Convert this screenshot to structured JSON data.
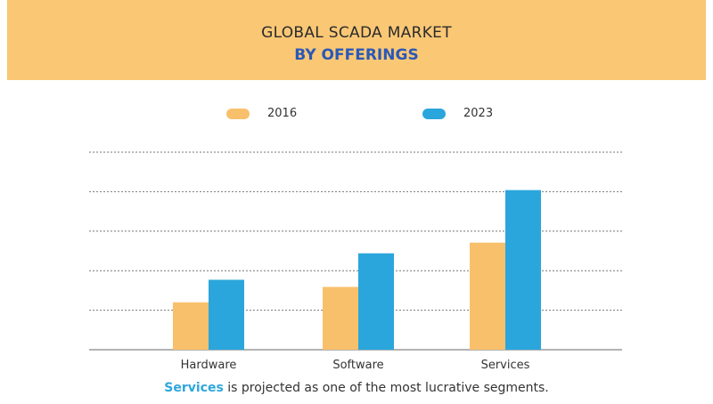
{
  "title": "GLOBAL SCADA MARKET",
  "subtitle": "BY OFFERINGS",
  "caption": {
    "highlight": "Services",
    "text": " is projected as one of the most lucrative segments."
  },
  "chart_data": {
    "type": "bar",
    "categories": [
      "Hardware",
      "Software",
      "Services"
    ],
    "series": [
      {
        "name": "2016",
        "color": "#f9c06b",
        "values": [
          1.2,
          1.59,
          2.71
        ]
      },
      {
        "name": "2023",
        "color": "#2aa6dc",
        "values": [
          1.77,
          2.44,
          4.04
        ]
      }
    ],
    "ylim": [
      0,
      5
    ],
    "yticks_unlabeled": 5,
    "grid": true,
    "legend": "top-center",
    "xlabel": "",
    "ylabel": ""
  }
}
